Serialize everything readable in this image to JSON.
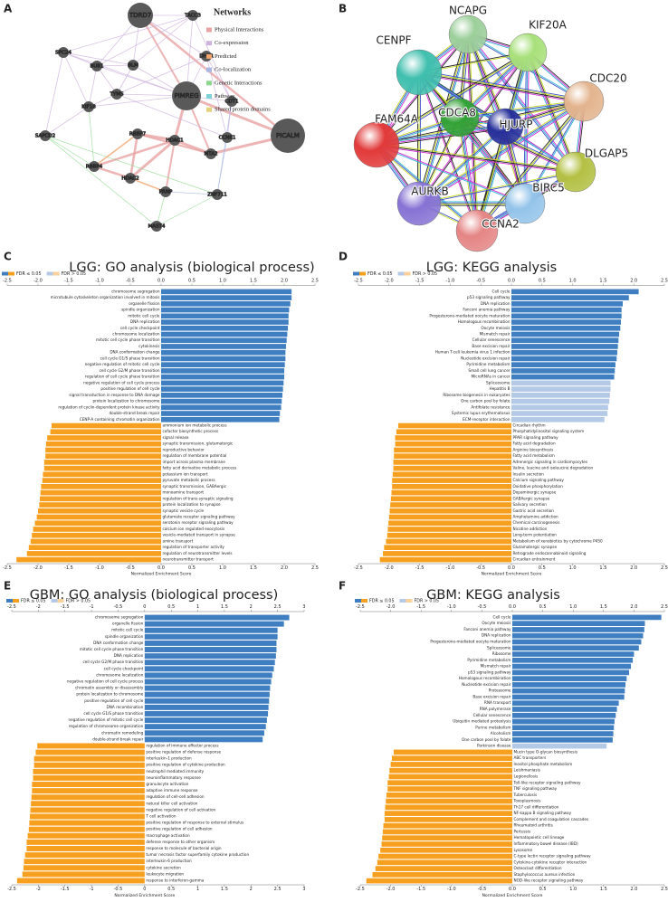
{
  "panel_labels": [
    "A",
    "B",
    "C",
    "D",
    "E",
    "F"
  ],
  "network_a": {
    "legend_title": "Networks",
    "legend": [
      {
        "name": "Physical Interactions",
        "color": "#e8a3a3"
      },
      {
        "name": "Co-expression",
        "color": "#cdb3dd"
      },
      {
        "name": "Predicted",
        "color": "#f2a66e"
      },
      {
        "name": "Co-localization",
        "color": "#a7b7e3"
      },
      {
        "name": "Genetic Interactions",
        "color": "#8ed88e"
      },
      {
        "name": "Pathway",
        "color": "#7fd1d8"
      },
      {
        "name": "Shared protein domains",
        "color": "#e6d27a"
      }
    ],
    "node_color": "#595959",
    "nodes": [
      "TDRD7",
      "TACC3",
      "SPC24",
      "BUB1",
      "BLM",
      "DHFR",
      "TYMS",
      "PIMREG",
      "CDT1",
      "KIF18",
      "PICALM",
      "SAPCD2",
      "RBBP7",
      "CCNE1",
      "HDAC1",
      "MTA2",
      "RBBP4",
      "HDAC2",
      "PRNP",
      "ZNF711",
      "MAST4"
    ]
  },
  "network_b": {
    "nodes": [
      {
        "label": "NCAPG",
        "color": "#9ccf9a"
      },
      {
        "label": "KIF20A",
        "color": "#a8e07a"
      },
      {
        "label": "CENPF",
        "color": "#3fbfae"
      },
      {
        "label": "CDC20",
        "color": "#e3b48e"
      },
      {
        "label": "CDCA8",
        "color": "#33a236"
      },
      {
        "label": "HJURP",
        "color": "#27309a"
      },
      {
        "label": "FAM64A",
        "color": "#e23a3a"
      },
      {
        "label": "DLGAP5",
        "color": "#b3c043"
      },
      {
        "label": "AURKB",
        "color": "#8673d4"
      },
      {
        "label": "BIRC5",
        "color": "#94c4ea"
      },
      {
        "label": "CCNA2",
        "color": "#e58585"
      }
    ]
  },
  "chart_data": [
    {
      "type": "bar",
      "title": "LGG: GO analysis (biological process)",
      "legend": [
        {
          "name": "FDR ≤ 0.05",
          "colors": [
            "#3f7fc1",
            "#f7a01f"
          ]
        },
        {
          "name": "FDR > 0.05",
          "colors": [
            "#b3c9e6",
            "#fcd09a"
          ]
        }
      ],
      "xlabel": "Normalized Enrichment Score",
      "xlim": [
        -2.5,
        2.5
      ],
      "xticks": [
        -2.5,
        {
          "value": -2,
          "label": "-2.0"
        },
        -1.5,
        {
          "value": -1,
          "label": "-1.0"
        },
        -0.5,
        {
          "value": 0,
          "label": "0.0"
        },
        0.5,
        {
          "value": 1,
          "label": "1.0"
        },
        1.5,
        {
          "value": 2,
          "label": "2.0"
        },
        2.5
      ],
      "categories": [
        "chromosome segregation",
        "microtubule cytoskeleton organization involved in mitosis",
        "organelle fission",
        "spindle organization",
        "mitotic cell cycle",
        "DNA replication",
        "cell cycle checkpoint",
        "chromosome localization",
        "mitotic cell cycle phase transition",
        "cytokinesis",
        "DNA conformation change",
        "cell cycle G1/S phase transition",
        "negative regulation of mitotic cell cycle",
        "cell cycle G2/M phase transition",
        "regulation of cell cycle phase transition",
        "negative regulation of cell cycle process",
        "positive regulation of cell cycle",
        "signal transduction in response to DNA damage",
        "protein localization to chromosome",
        "regulation of cyclin-dependent protein kinase activity",
        "double-strand break repair",
        "CENP-A containing chromatin organization",
        "ammonium ion metabolic process",
        "cofactor biosynthetic process",
        "signal release",
        "synaptic transmission, glutamatergic",
        "reproductive behavior",
        "regulation of membrane potential",
        "import across plasma membrane",
        "fatty acid derivative metabolic process",
        "potassium ion transport",
        "pyruvate metabolic process",
        "synaptic transmission, GABAergic",
        "monoamine transport",
        "regulation of trans-synaptic signaling",
        "protein localization to synapse",
        "synaptic vesicle cycle",
        "glutamate receptor signaling pathway",
        "serotonin receptor signaling pathway",
        "calcium ion regulated exocytosis",
        "vesicle-mediated transport in synapse",
        "amine transport",
        "regulation of transporter activity",
        "regulation of neurotransmitter levels",
        "neurotransmitter transport"
      ],
      "values": [
        2.12,
        2.12,
        2.1,
        2.08,
        2.07,
        2.07,
        2.06,
        2.05,
        2.04,
        2.03,
        2.02,
        2.02,
        2.01,
        2.0,
        2.0,
        1.99,
        1.98,
        1.97,
        1.96,
        1.95,
        1.93,
        1.92,
        -1.78,
        -1.8,
        -1.85,
        -1.87,
        -1.88,
        -1.88,
        -1.9,
        -1.9,
        -1.92,
        -1.93,
        -1.95,
        -1.96,
        -1.97,
        -1.98,
        -2.0,
        -2.02,
        -2.05,
        -2.08,
        -2.1,
        -2.12,
        -2.15,
        -2.18,
        -2.35
      ],
      "colors": [
        "#3f7fc1",
        "#3f7fc1",
        "#3f7fc1",
        "#3f7fc1",
        "#3f7fc1",
        "#3f7fc1",
        "#3f7fc1",
        "#3f7fc1",
        "#3f7fc1",
        "#3f7fc1",
        "#3f7fc1",
        "#3f7fc1",
        "#3f7fc1",
        "#3f7fc1",
        "#3f7fc1",
        "#3f7fc1",
        "#3f7fc1",
        "#3f7fc1",
        "#3f7fc1",
        "#3f7fc1",
        "#3f7fc1",
        "#3f7fc1",
        "#f7a01f",
        "#f7a01f",
        "#f7a01f",
        "#f7a01f",
        "#f7a01f",
        "#f7a01f",
        "#f7a01f",
        "#f7a01f",
        "#f7a01f",
        "#f7a01f",
        "#f7a01f",
        "#f7a01f",
        "#f7a01f",
        "#f7a01f",
        "#f7a01f",
        "#f7a01f",
        "#f7a01f",
        "#f7a01f",
        "#f7a01f",
        "#f7a01f",
        "#f7a01f",
        "#f7a01f",
        "#f7a01f"
      ]
    },
    {
      "type": "bar",
      "title": "LGG: KEGG analysis",
      "legend": [
        {
          "name": "FDR ≤ 0.05",
          "colors": [
            "#3f7fc1",
            "#f7a01f"
          ]
        },
        {
          "name": "FDR > 0.05",
          "colors": [
            "#b3c9e6",
            "#fcd09a"
          ]
        }
      ],
      "xlabel": "Normalized Enrichment Score",
      "xlim": [
        -2.5,
        2.5
      ],
      "xticks": [
        -2.5,
        {
          "value": -2,
          "label": "-2.0"
        },
        -1.5,
        {
          "value": -1,
          "label": "-1.0"
        },
        -0.5,
        {
          "value": 0,
          "label": "0.0"
        },
        0.5,
        {
          "value": 1,
          "label": "1.0"
        },
        1.5,
        {
          "value": 2,
          "label": "2.0"
        },
        2.5
      ],
      "categories": [
        "Cell cycle",
        "p53 signaling pathway",
        "DNA replication",
        "Fanconi anemia pathway",
        "Progesterone-mediated oocyte maturation",
        "Homologous recombination",
        "Oocyte meiosis",
        "Mismatch repair",
        "Cellular senescence",
        "Base excision repair",
        "Human T-cell leukemia virus 1 infection",
        "Nucleotide excision repair",
        "Pyrimidine metabolism",
        "Small cell lung cancer",
        "MicroRNAs in cancer",
        "Spliceosome",
        "Hepatitis B",
        "Ribosome biogenesis in eukaryotes",
        "One carbon pool by folate",
        "Antifolate resistance",
        "Systemic lupus erythematosus",
        "ECM-receptor interaction",
        "Circadian rhythm",
        "Phosphatidylinositol signaling system",
        "PPAR signaling pathway",
        "Fatty acid degradation",
        "Arginine biosynthesis",
        "Fatty acid metabolism",
        "Adrenergic signaling in cardiomyocytes",
        "Valine, leucine and isoleucine degradation",
        "Insulin secretion",
        "Calcium signaling pathway",
        "Oxidative phosphorylation",
        "Dopaminergic synapse",
        "GABAergic synapse",
        "Salivary secretion",
        "Gastric acid secretion",
        "Amphetamine addiction",
        "Chemical carcinogenesis",
        "Nicotine addiction",
        "Long-term potentiation",
        "Metabolism of xenobiotics by cytochrome P450",
        "Glutamatergic synapse",
        "Retrograde endocannabinoid signaling",
        "Circadian entrainment"
      ],
      "values": [
        2.08,
        1.92,
        1.82,
        1.8,
        1.8,
        1.79,
        1.78,
        1.76,
        1.75,
        1.74,
        1.73,
        1.72,
        1.7,
        1.69,
        1.68,
        1.62,
        1.62,
        1.61,
        1.6,
        1.58,
        1.57,
        1.52,
        -1.85,
        -1.88,
        -1.9,
        -1.9,
        -1.92,
        -1.92,
        -1.93,
        -1.93,
        -1.94,
        -1.95,
        -1.95,
        -1.96,
        -1.97,
        -1.98,
        -1.99,
        -2.0,
        -2.01,
        -2.02,
        -2.03,
        -2.05,
        -2.08,
        -2.1,
        -2.15
      ],
      "colors": [
        "#3f7fc1",
        "#3f7fc1",
        "#3f7fc1",
        "#3f7fc1",
        "#3f7fc1",
        "#3f7fc1",
        "#3f7fc1",
        "#3f7fc1",
        "#3f7fc1",
        "#3f7fc1",
        "#3f7fc1",
        "#3f7fc1",
        "#3f7fc1",
        "#3f7fc1",
        "#3f7fc1",
        "#b3c9e6",
        "#b3c9e6",
        "#b3c9e6",
        "#b3c9e6",
        "#b3c9e6",
        "#b3c9e6",
        "#b3c9e6",
        "#f7a01f",
        "#f7a01f",
        "#f7a01f",
        "#f7a01f",
        "#f7a01f",
        "#f7a01f",
        "#f7a01f",
        "#f7a01f",
        "#f7a01f",
        "#f7a01f",
        "#f7a01f",
        "#f7a01f",
        "#f7a01f",
        "#f7a01f",
        "#f7a01f",
        "#f7a01f",
        "#f7a01f",
        "#f7a01f",
        "#f7a01f",
        "#f7a01f",
        "#f7a01f",
        "#f7a01f",
        "#f7a01f"
      ]
    },
    {
      "type": "bar",
      "title": "GBM: GO analysis (biological process)",
      "legend": [
        {
          "name": "FDR ≤ 0.05",
          "colors": [
            "#3f7fc1",
            "#f7a01f"
          ]
        },
        {
          "name": "FDR > 0.05",
          "colors": [
            "#b3c9e6",
            "#fcd09a"
          ]
        }
      ],
      "xlabel": "Normalized Enrichment Score",
      "xlim": [
        -2.5,
        3.0
      ],
      "xticks": [
        -2.5,
        -2,
        -1.5,
        -1,
        -0.5,
        0,
        0.5,
        1,
        1.5,
        2,
        2.5,
        3
      ],
      "categories": [
        "chromosome segregation",
        "organelle fission",
        "mitotic cell cycle",
        "spindle organization",
        "DNA conformation change",
        "mitotic cell cycle phase transition",
        "DNA replication",
        "cell cycle G2/M phase transition",
        "cell cycle checkpoint",
        "chromosome localization",
        "negative regulation of cell cycle process",
        "chromatin assembly or disassembly",
        "protein localization to chromosome",
        "positive regulation of cell cycle",
        "DNA recombination",
        "cell cycle G1/S phase transition",
        "negative regulation of mitotic cell cycle",
        "regulation of chromosome organization",
        "chromatin remodeling",
        "double-strand break repair",
        "regulation of immune effector process",
        "positive regulation of defense response",
        "interleukin-1 production",
        "positive regulation of cytokine production",
        "neutrophil mediated immunity",
        "neuroinflammatory response",
        "granulocyte activation",
        "adaptive immune response",
        "regulation of cell-cell adhesion",
        "natural killer cell activation",
        "negative regulation of cell activation",
        "T cell activation",
        "positive regulation of response to external stimulus",
        "positive regulation of cell adhesion",
        "macrophage activation",
        "defense response to other organism",
        "response to molecule of bacterial origin",
        "tumor necrosis factor superfamily cytokine production",
        "interleukin-6 production",
        "cytokine secretion",
        "leukocyte migration",
        "response to interferon-gamma"
      ],
      "values": [
        2.72,
        2.62,
        2.5,
        2.5,
        2.48,
        2.48,
        2.47,
        2.45,
        2.43,
        2.4,
        2.38,
        2.36,
        2.35,
        2.34,
        2.33,
        2.32,
        2.3,
        2.28,
        2.25,
        2.22,
        -2.02,
        -2.05,
        -2.08,
        -2.08,
        -2.1,
        -2.1,
        -2.12,
        -2.12,
        -2.13,
        -2.14,
        -2.15,
        -2.16,
        -2.17,
        -2.18,
        -2.2,
        -2.22,
        -2.22,
        -2.25,
        -2.27,
        -2.28,
        -2.3,
        -2.4
      ],
      "colors": [
        "#3f7fc1",
        "#3f7fc1",
        "#3f7fc1",
        "#3f7fc1",
        "#3f7fc1",
        "#3f7fc1",
        "#3f7fc1",
        "#3f7fc1",
        "#3f7fc1",
        "#3f7fc1",
        "#3f7fc1",
        "#3f7fc1",
        "#3f7fc1",
        "#3f7fc1",
        "#3f7fc1",
        "#3f7fc1",
        "#3f7fc1",
        "#3f7fc1",
        "#3f7fc1",
        "#3f7fc1",
        "#f7a01f",
        "#f7a01f",
        "#f7a01f",
        "#f7a01f",
        "#f7a01f",
        "#f7a01f",
        "#f7a01f",
        "#f7a01f",
        "#f7a01f",
        "#f7a01f",
        "#f7a01f",
        "#f7a01f",
        "#f7a01f",
        "#f7a01f",
        "#f7a01f",
        "#f7a01f",
        "#f7a01f",
        "#f7a01f",
        "#f7a01f",
        "#f7a01f",
        "#f7a01f",
        "#f7a01f"
      ]
    },
    {
      "type": "bar",
      "title": "GBM: KEGG analysis",
      "legend": [
        {
          "name": "FDR ≤ 0.05",
          "colors": [
            "#3f7fc1",
            "#f7a01f"
          ]
        },
        {
          "name": "FDR > 0.05",
          "colors": [
            "#b3c9e6",
            "#fcd09a"
          ]
        }
      ],
      "xlabel": "Normalized Enrichment Score",
      "xlim": [
        -2.5,
        2.5
      ],
      "xticks": [
        -2.5,
        {
          "value": -2,
          "label": "-2.0"
        },
        -1.5,
        {
          "value": -1,
          "label": "-1.0"
        },
        -0.5,
        {
          "value": 0,
          "label": "0.0"
        },
        0.5,
        {
          "value": 1,
          "label": "1.0"
        },
        1.5,
        {
          "value": 2,
          "label": "2.0"
        },
        2.5
      ],
      "categories": [
        "Cell cycle",
        "Oocyte meiosis",
        "Fanconi anemia pathway",
        "DNA replication",
        "Progesterone-mediated oocyte maturation",
        "Spliceosome",
        "Ribosome",
        "Pyrimidine metabolism",
        "Mismatch repair",
        "p53 signaling pathway",
        "Homologous recombination",
        "Nucleotide excision repair",
        "Proteasome",
        "Base excision repair",
        "RNA transport",
        "RNA polymerase",
        "Cellular senescence",
        "Ubiquitin mediated proteolysis",
        "Purine metabolism",
        "Alcoholism",
        "One carbon pool by folate",
        "Parkinson disease",
        "Mucin type O-glycan biosynthesis",
        "ABC transporters",
        "Inositol phosphate metabolism",
        "Leishmaniasis",
        "Legionellosis",
        "Toll-like receptor signaling pathway",
        "TNF signaling pathway",
        "Tuberculosis",
        "Toxoplasmosis",
        "Th17 cell differentiation",
        "NF-kappa B signaling pathway",
        "Complement and coagulation cascades",
        "Rheumatoid arthritis",
        "Pertussis",
        "Hematopoietic cell lineage",
        "Inflammatory bowel disease (IBD)",
        "Lysosome",
        "C-type lectin receptor signaling pathway",
        "Cytokine-cytokine receptor interaction",
        "Osteoclast differentiation",
        "Staphylococcus aureus infection",
        "NOD-like receptor signaling pathway"
      ],
      "values": [
        2.45,
        2.18,
        2.17,
        2.15,
        2.12,
        2.08,
        2.0,
        1.98,
        1.95,
        1.92,
        1.88,
        1.86,
        1.85,
        1.84,
        1.75,
        1.72,
        1.7,
        1.68,
        1.67,
        1.66,
        1.65,
        1.55,
        -1.95,
        -1.98,
        -2.0,
        -2.02,
        -2.03,
        -2.05,
        -2.05,
        -2.07,
        -2.08,
        -2.09,
        -2.1,
        -2.1,
        -2.12,
        -2.13,
        -2.14,
        -2.15,
        -2.17,
        -2.2,
        -2.22,
        -2.25,
        -2.3,
        -2.4
      ],
      "colors": [
        "#3f7fc1",
        "#3f7fc1",
        "#3f7fc1",
        "#3f7fc1",
        "#3f7fc1",
        "#3f7fc1",
        "#3f7fc1",
        "#3f7fc1",
        "#3f7fc1",
        "#3f7fc1",
        "#3f7fc1",
        "#3f7fc1",
        "#3f7fc1",
        "#3f7fc1",
        "#3f7fc1",
        "#3f7fc1",
        "#3f7fc1",
        "#3f7fc1",
        "#3f7fc1",
        "#3f7fc1",
        "#3f7fc1",
        "#b3c9e6",
        "#f7a01f",
        "#f7a01f",
        "#f7a01f",
        "#f7a01f",
        "#f7a01f",
        "#f7a01f",
        "#f7a01f",
        "#f7a01f",
        "#f7a01f",
        "#f7a01f",
        "#f7a01f",
        "#f7a01f",
        "#f7a01f",
        "#f7a01f",
        "#f7a01f",
        "#f7a01f",
        "#f7a01f",
        "#f7a01f",
        "#f7a01f",
        "#f7a01f",
        "#f7a01f",
        "#f7a01f"
      ]
    }
  ]
}
